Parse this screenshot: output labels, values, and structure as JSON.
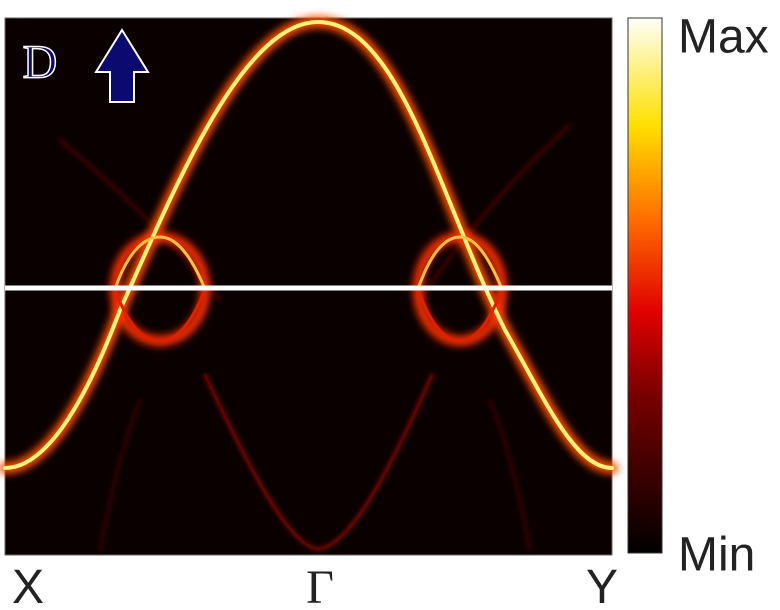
{
  "panel_label": "D",
  "colorbar": {
    "max_label": "Max",
    "min_label": "Min"
  },
  "k_path": [
    "X",
    "Γ",
    "Y"
  ]
}
